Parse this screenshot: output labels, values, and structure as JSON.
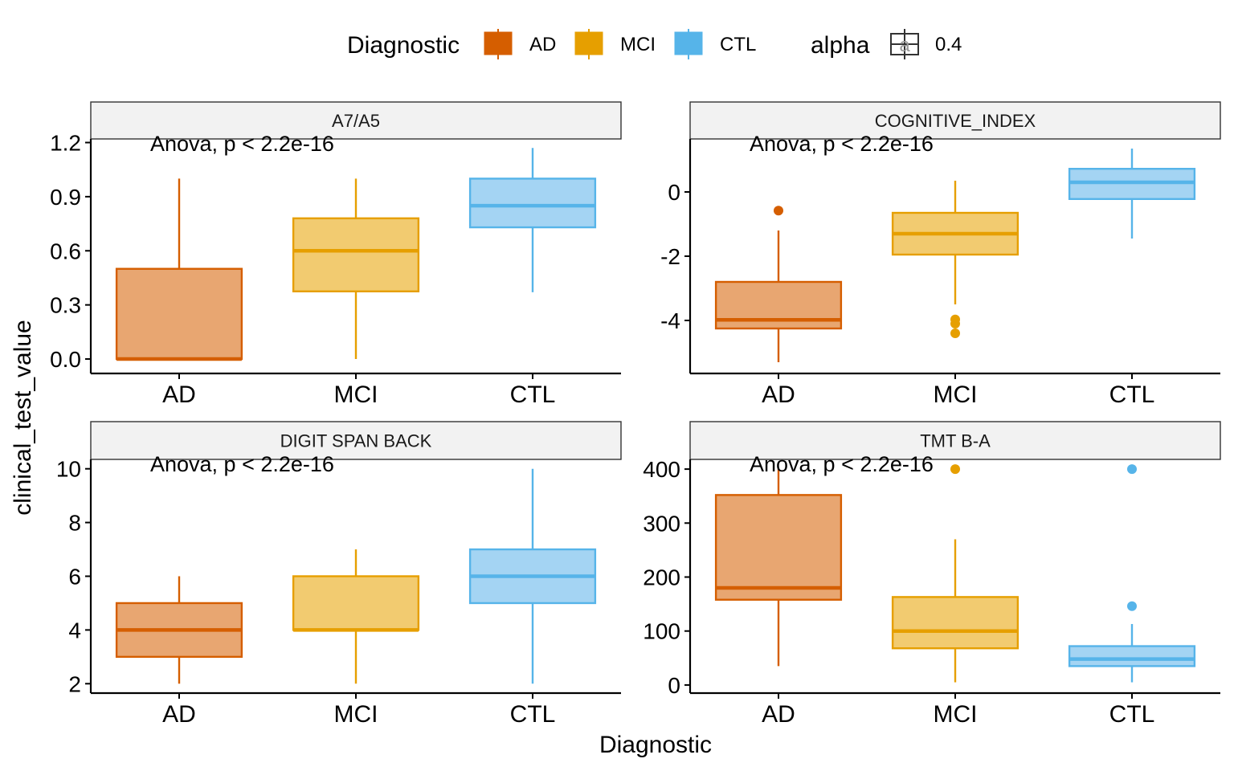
{
  "chart_data": {
    "type": "box",
    "x_axis_title": "Diagnostic",
    "y_axis_title": "clinical_test_value",
    "categories": [
      "AD",
      "MCI",
      "CTL"
    ],
    "colors": {
      "AD": "#d55e00",
      "MCI": "#e69f00",
      "CTL": "#56b4e9"
    },
    "legend": {
      "position": "top",
      "fill_title": "Diagnostic",
      "fill_items": [
        "AD",
        "MCI",
        "CTL"
      ],
      "alpha_title": "alpha",
      "alpha_key_glyph": "a",
      "alpha_value": "0.4"
    },
    "panels": [
      {
        "title": "A7/A5",
        "annotation": "Anova, p < 2.2e-16",
        "ylim": [
          -0.08,
          1.22
        ],
        "yticks": [
          0.0,
          0.3,
          0.6,
          0.9,
          1.2
        ],
        "ytick_labels": [
          "0.0",
          "0.3",
          "0.6",
          "0.9",
          "1.2"
        ],
        "boxes": [
          {
            "group": "AD",
            "min": 0.0,
            "q1": 0.0,
            "median": 0.0,
            "q3": 0.5,
            "max": 1.0,
            "outliers": []
          },
          {
            "group": "MCI",
            "min": 0.0,
            "q1": 0.375,
            "median": 0.6,
            "q3": 0.78,
            "max": 1.0,
            "outliers": []
          },
          {
            "group": "CTL",
            "min": 0.37,
            "q1": 0.73,
            "median": 0.85,
            "q3": 1.0,
            "max": 1.17,
            "outliers": []
          }
        ]
      },
      {
        "title": "COGNITIVE_INDEX",
        "annotation": "Anova, p < 2.2e-16",
        "ylim": [
          -5.65,
          1.65
        ],
        "yticks": [
          0,
          -2,
          -4
        ],
        "ytick_labels": [
          "0",
          "-2",
          "-4"
        ],
        "boxes": [
          {
            "group": "AD",
            "min": -5.3,
            "q1": -4.25,
            "median": -3.98,
            "q3": -2.8,
            "max": -1.2,
            "outliers": [
              -0.58
            ]
          },
          {
            "group": "MCI",
            "min": -3.5,
            "q1": -1.95,
            "median": -1.3,
            "q3": -0.65,
            "max": 0.35,
            "outliers": [
              -3.97,
              -4.1,
              -4.4
            ]
          },
          {
            "group": "CTL",
            "min": -1.45,
            "q1": -0.22,
            "median": 0.3,
            "q3": 0.72,
            "max": 1.35,
            "outliers": []
          }
        ]
      },
      {
        "title": "DIGIT SPAN BACK",
        "annotation": "Anova, p < 2.2e-16",
        "ylim": [
          1.65,
          10.35
        ],
        "yticks": [
          2,
          4,
          6,
          8,
          10
        ],
        "ytick_labels": [
          "2",
          "4",
          "6",
          "8",
          "10"
        ],
        "boxes": [
          {
            "group": "AD",
            "min": 2,
            "q1": 3,
            "median": 4,
            "q3": 5,
            "max": 6,
            "outliers": []
          },
          {
            "group": "MCI",
            "min": 2,
            "q1": 4,
            "median": 4,
            "q3": 6,
            "max": 7,
            "outliers": []
          },
          {
            "group": "CTL",
            "min": 2,
            "q1": 5,
            "median": 6,
            "q3": 7,
            "max": 10,
            "outliers": []
          }
        ]
      },
      {
        "title": "TMT B-A",
        "annotation": "Anova, p < 2.2e-16",
        "ylim": [
          -15,
          418
        ],
        "yticks": [
          0,
          100,
          200,
          300,
          400
        ],
        "ytick_labels": [
          "0",
          "100",
          "200",
          "300",
          "400"
        ],
        "boxes": [
          {
            "group": "AD",
            "min": 35,
            "q1": 158,
            "median": 180,
            "q3": 352,
            "max": 400,
            "outliers": []
          },
          {
            "group": "MCI",
            "min": 5,
            "q1": 68,
            "median": 100,
            "q3": 163,
            "max": 270,
            "outliers": [
              400
            ]
          },
          {
            "group": "CTL",
            "min": 5,
            "q1": 35,
            "median": 48,
            "q3": 72,
            "max": 113,
            "outliers": [
              146,
              400
            ]
          }
        ]
      }
    ]
  }
}
